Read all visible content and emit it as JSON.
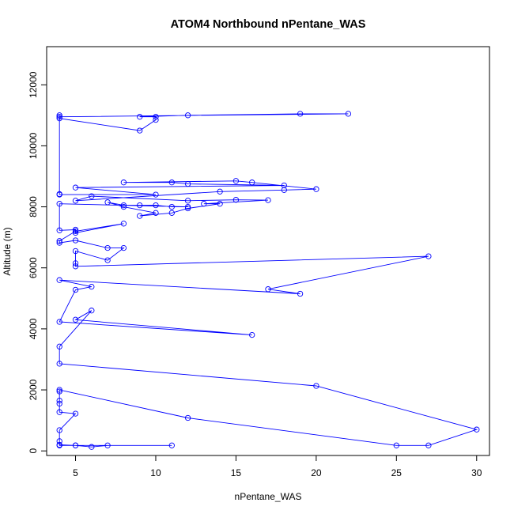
{
  "chart_data": {
    "type": "line",
    "title": "ATOM4 Northbound nPentane_WAS",
    "xlabel": "nPentane_WAS",
    "ylabel": "Altitude (m)",
    "xlim": [
      3.2,
      30.8
    ],
    "ylim": [
      -150,
      13250
    ],
    "xticks": [
      5,
      10,
      15,
      20,
      25,
      30
    ],
    "yticks": [
      0,
      2000,
      4000,
      6000,
      8000,
      10000,
      12000
    ],
    "marker": "open-circle",
    "colors": {
      "series": "#0000ff",
      "axes": "#000000"
    },
    "series": [
      {
        "name": "nPentane_WAS",
        "points": [
          [
            4,
            11000
          ],
          [
            4,
            10900
          ],
          [
            9,
            10500
          ],
          [
            10,
            10850
          ],
          [
            10,
            10950
          ],
          [
            9,
            10950
          ],
          [
            12,
            11000
          ],
          [
            19,
            11050
          ],
          [
            22,
            11050
          ],
          [
            4,
            10950
          ],
          [
            4,
            8420
          ],
          [
            4,
            8400
          ],
          [
            10,
            8400
          ],
          [
            5,
            8630
          ],
          [
            18,
            8700
          ],
          [
            12,
            8750
          ],
          [
            11,
            8800
          ],
          [
            8,
            8800
          ],
          [
            15,
            8850
          ],
          [
            16,
            8800
          ],
          [
            20,
            8580
          ],
          [
            18,
            8550
          ],
          [
            14,
            8500
          ],
          [
            5,
            8200
          ],
          [
            6,
            8350
          ],
          [
            12,
            8200
          ],
          [
            15,
            8230
          ],
          [
            17,
            8220
          ],
          [
            13,
            8100
          ],
          [
            14,
            8100
          ],
          [
            12,
            7950
          ],
          [
            11,
            7800
          ],
          [
            9,
            7700
          ],
          [
            10,
            7800
          ],
          [
            8,
            8000
          ],
          [
            7,
            8150
          ],
          [
            8,
            8050
          ],
          [
            9,
            8050
          ],
          [
            10,
            8050
          ],
          [
            11,
            8000
          ],
          [
            12,
            8000
          ],
          [
            4,
            8100
          ],
          [
            4,
            7230
          ],
          [
            5,
            7250
          ],
          [
            5,
            7150
          ],
          [
            8,
            7450
          ],
          [
            5,
            7200
          ],
          [
            4,
            6880
          ],
          [
            4,
            6820
          ],
          [
            5,
            6900
          ],
          [
            7,
            6650
          ],
          [
            8,
            6650
          ],
          [
            7,
            6250
          ],
          [
            5,
            6550
          ],
          [
            5,
            6150
          ],
          [
            5,
            6050
          ],
          [
            27,
            6380
          ],
          [
            17,
            5300
          ],
          [
            19,
            5150
          ],
          [
            4,
            5600
          ],
          [
            6,
            5380
          ],
          [
            5,
            5280
          ],
          [
            4,
            4230
          ],
          [
            16,
            3800
          ],
          [
            5,
            4300
          ],
          [
            6,
            4600
          ],
          [
            4,
            3420
          ],
          [
            4,
            2860
          ],
          [
            20,
            2130
          ],
          [
            30,
            700
          ],
          [
            27,
            180
          ],
          [
            25,
            180
          ],
          [
            12,
            1080
          ],
          [
            4,
            2000
          ],
          [
            4,
            1950
          ],
          [
            4,
            1650
          ],
          [
            4,
            1550
          ],
          [
            4,
            1270
          ],
          [
            5,
            1220
          ],
          [
            4,
            680
          ],
          [
            4,
            320
          ],
          [
            4,
            180
          ],
          [
            5,
            180
          ],
          [
            6,
            130
          ],
          [
            7,
            180
          ],
          [
            11,
            180
          ],
          [
            5,
            180
          ],
          [
            4,
            200
          ]
        ]
      }
    ]
  }
}
